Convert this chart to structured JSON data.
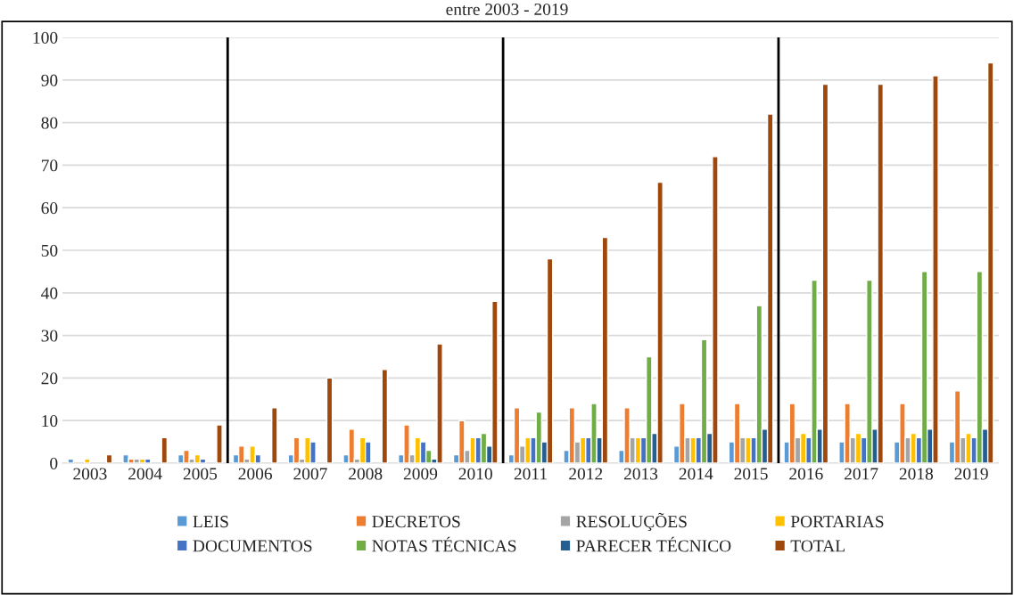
{
  "chart_data": {
    "type": "bar",
    "title": "entre 2003 - 2019",
    "x": [
      2003,
      2004,
      2005,
      2006,
      2007,
      2008,
      2009,
      2010,
      2011,
      2012,
      2013,
      2014,
      2015,
      2016,
      2017,
      2018,
      2019
    ],
    "xlim": [
      2002.5,
      2019.5
    ],
    "xticks": [
      2003,
      2004,
      2005,
      2006,
      2007,
      2008,
      2009,
      2010,
      2011,
      2012,
      2013,
      2014,
      2015,
      2016,
      2017,
      2018,
      2019
    ],
    "ylim": [
      0,
      100
    ],
    "yticks": [
      0,
      10,
      20,
      30,
      40,
      50,
      60,
      70,
      80,
      90,
      100
    ],
    "grid": "y",
    "legend": "bottom",
    "series": [
      {
        "name": "LEIS",
        "color": "#5b9bd5",
        "values": [
          1,
          2,
          2,
          2,
          2,
          2,
          2,
          2,
          2,
          3,
          3,
          4,
          5,
          5,
          5,
          5,
          5
        ]
      },
      {
        "name": "DECRETOS",
        "color": "#ed7d31",
        "values": [
          null,
          1,
          3,
          4,
          6,
          8,
          9,
          10,
          13,
          13,
          13,
          14,
          14,
          14,
          14,
          14,
          17
        ]
      },
      {
        "name": "RESOLUÇÕES",
        "color": "#a5a5a5",
        "values": [
          null,
          1,
          1,
          1,
          1,
          1,
          2,
          3,
          4,
          5,
          6,
          6,
          6,
          6,
          6,
          6,
          6
        ]
      },
      {
        "name": "PORTARIAS",
        "color": "#ffc000",
        "values": [
          1,
          1,
          2,
          4,
          6,
          6,
          6,
          6,
          6,
          6,
          6,
          6,
          6,
          7,
          7,
          7,
          7
        ]
      },
      {
        "name": "DOCUMENTOS",
        "color": "#4472c4",
        "values": [
          null,
          1,
          1,
          2,
          5,
          5,
          5,
          6,
          6,
          6,
          6,
          6,
          6,
          6,
          6,
          6,
          6
        ]
      },
      {
        "name": "NOTAS TÉCNICAS",
        "color": "#70ad47",
        "values": [
          null,
          null,
          null,
          null,
          null,
          null,
          3,
          7,
          12,
          14,
          25,
          29,
          37,
          43,
          43,
          45,
          45
        ]
      },
      {
        "name": "PARECER TÉCNICO",
        "color": "#255e91",
        "values": [
          null,
          null,
          null,
          null,
          null,
          null,
          1,
          4,
          5,
          6,
          7,
          7,
          8,
          8,
          8,
          8,
          8
        ]
      },
      {
        "name": "TOTAL",
        "color": "#9e480e",
        "values": [
          2,
          6,
          9,
          13,
          20,
          22,
          28,
          38,
          48,
          53,
          66,
          72,
          82,
          89,
          89,
          91,
          94
        ]
      }
    ],
    "ref_lines": [
      {
        "axis": "x",
        "value": 2005.5,
        "color": "#000000"
      },
      {
        "axis": "x",
        "value": 2010.5,
        "color": "#000000"
      },
      {
        "axis": "x",
        "value": 2015.5,
        "color": "#000000"
      }
    ]
  }
}
